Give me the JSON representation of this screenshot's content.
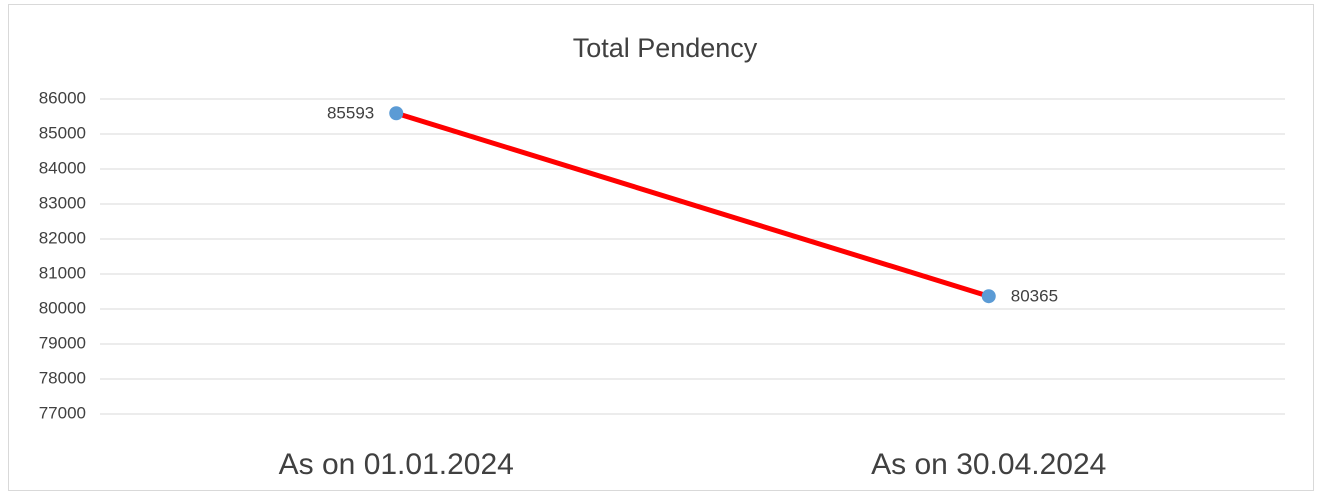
{
  "chart_data": {
    "type": "line",
    "title": "Total Pendency",
    "categories": [
      "As on 01.01.2024",
      "As on 30.04.2024"
    ],
    "series": [
      {
        "name": "Total Pendency",
        "color": "#ff0000",
        "marker_color": "#5b9bd5",
        "values": [
          85593,
          80365
        ]
      }
    ],
    "ylim": [
      77000,
      86000
    ],
    "yticks": [
      77000,
      78000,
      79000,
      80000,
      81000,
      82000,
      83000,
      84000,
      85000,
      86000
    ],
    "grid": true,
    "data_labels": true
  }
}
